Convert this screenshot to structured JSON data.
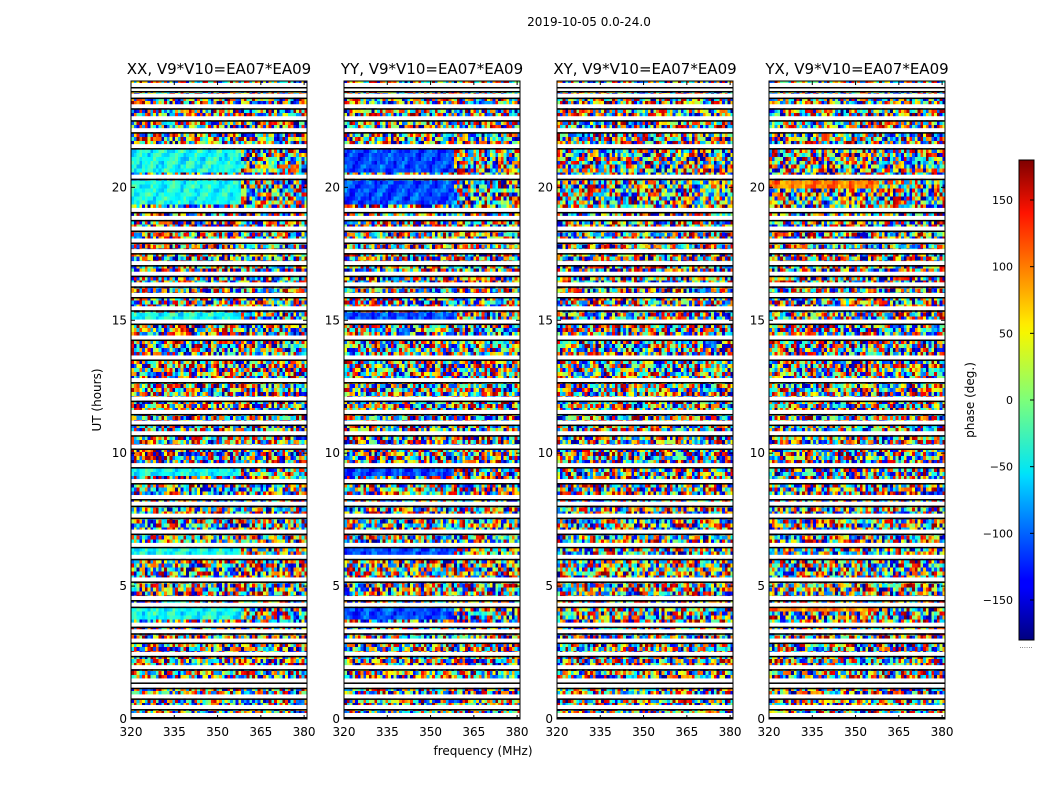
{
  "chart_data": {
    "type": "heatmap",
    "title": "2019-10-05 0.0-24.0",
    "xlabel": "frequency (MHz)",
    "ylabel": "UT (hours)",
    "xlim": [
      320,
      381
    ],
    "ylim": [
      0,
      24
    ],
    "x_ticks": [
      320,
      335,
      350,
      365,
      380
    ],
    "y_ticks": [
      0,
      5,
      10,
      15,
      20
    ],
    "colorbar": {
      "label": "phase (deg.)",
      "range": [
        -180,
        180
      ],
      "ticks": [
        -150,
        -100,
        -50,
        0,
        50,
        100,
        150
      ],
      "tick_labels": [
        "−150",
        "−100",
        "−50",
        "0",
        "50",
        "100",
        "150"
      ],
      "colormap": "jet",
      "offset_text": "......"
    },
    "panels": [
      {
        "name": "XX",
        "title": "XX, V9*V10=EA07*EA09",
        "coherent_bands": [
          [
            19.3,
            20.3
          ],
          [
            20.6,
            21.4
          ],
          [
            15.0,
            15.3
          ],
          [
            9.1,
            9.4
          ],
          [
            6.2,
            6.4
          ],
          [
            3.8,
            4.2
          ]
        ],
        "coherent_phase": -40
      },
      {
        "name": "YY",
        "title": "YY, V9*V10=EA07*EA09",
        "coherent_bands": [
          [
            19.3,
            20.3
          ],
          [
            20.6,
            21.4
          ],
          [
            15.0,
            15.3
          ],
          [
            9.1,
            9.4
          ],
          [
            6.2,
            6.4
          ],
          [
            3.8,
            4.2
          ]
        ],
        "coherent_phase": -110
      },
      {
        "name": "XY",
        "title": "XY, V9*V10=EA07*EA09",
        "coherent_bands": [],
        "coherent_phase": 0
      },
      {
        "name": "YX",
        "title": "YX, V9*V10=EA07*EA09",
        "coherent_bands": [
          [
            4.0,
            4.2
          ],
          [
            20.0,
            20.3
          ]
        ],
        "coherent_phase": 90
      }
    ],
    "flagged_hours": [
      0.15,
      0.45,
      0.85,
      1.25,
      1.45,
      1.95,
      2.45,
      2.95,
      3.3,
      3.55,
      4.3,
      4.55,
      5.25,
      6.1,
      6.55,
      7.05,
      7.65,
      8.1,
      8.35,
      8.95,
      9.55,
      10.25,
      10.75,
      11.15,
      11.55,
      12.05,
      12.75,
      13.6,
      14.35,
      14.95,
      15.45,
      15.95,
      16.35,
      16.75,
      17.15,
      17.6,
      18.0,
      18.45,
      18.85,
      19.15,
      20.4,
      21.55,
      22.15,
      22.6,
      23.05,
      23.45,
      23.7,
      23.85
    ]
  }
}
